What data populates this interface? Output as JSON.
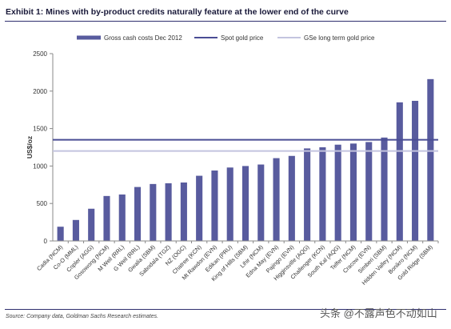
{
  "header": {
    "title": "Exhibit 1: Mines with by-product credits naturally feature at the lower end of the curve"
  },
  "footer": {
    "source": "Source: Company data, Goldman Sachs Research estimates.",
    "watermark": "头条 @不露声色不动如山"
  },
  "colors": {
    "bar": "#585b9e",
    "spot_line": "#4a4d95",
    "longterm_line": "#c3c4df",
    "rule": "#2f2f6f"
  },
  "chart_data": {
    "type": "bar",
    "title": "",
    "xlabel": "",
    "ylabel": "US$/oz",
    "ylim": [
      0,
      2500
    ],
    "yticks": [
      0,
      500,
      1000,
      1500,
      2000,
      2500
    ],
    "grid": false,
    "legend_placement": "top",
    "categories": [
      "Cadia (NCM)",
      "Co-O (MML)",
      "Copler (AGG)",
      "Gosowong (NCM)",
      "M Weil (RRL)",
      "G Weil (RRL)",
      "Gwalia (SBM)",
      "Sabodala (TGZ)",
      "NZ (OGC)",
      "Chatree (KCN)",
      "Mt Rawdon (EVN)",
      "Edikan (PRU)",
      "King of Hills (SBM)",
      "Lihir (NCM)",
      "Edna May (EVN)",
      "Pajingo (EVN)",
      "Higginsville (AQG)",
      "Challenger (KCN)",
      "South Kal (AQG)",
      "Telfer (NCM)",
      "Cracow (EVN)",
      "Simberi (SBM)",
      "Hidden Valley (NCM)",
      "Bonikro (NCM)",
      "Gold Ridge (SBM)"
    ],
    "series": [
      {
        "name": "Gross cash costs Dec 2012",
        "values": [
          190,
          280,
          430,
          600,
          620,
          720,
          760,
          770,
          780,
          870,
          940,
          980,
          1000,
          1020,
          1105,
          1135,
          1235,
          1250,
          1285,
          1300,
          1320,
          1380,
          1850,
          1870,
          2160
        ]
      }
    ],
    "reference_lines": [
      {
        "name": "Spot gold price",
        "value": 1350
      },
      {
        "name": "GSe long term  gold price",
        "value": 1200
      }
    ]
  }
}
